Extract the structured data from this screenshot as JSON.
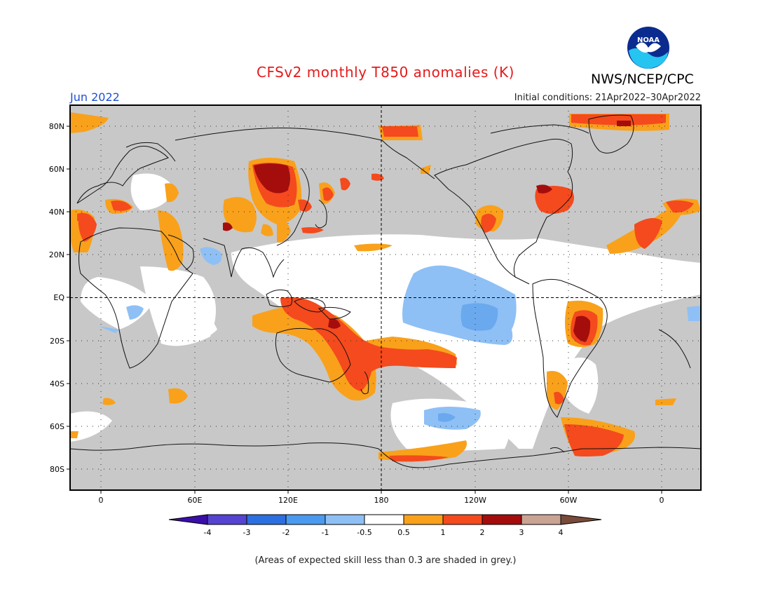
{
  "header": {
    "title": "CFSv2 monthly T850 anomalies (K)",
    "org": "NWS/NCEP/CPC",
    "month": "Jun 2022",
    "initial_conditions": "Initial conditions: 21Apr2022–30Apr2022"
  },
  "logo": {
    "text": "NOAA",
    "icon": "noaa-logo"
  },
  "footnote": "(Areas of expected skill less than 0.3 are shaded in grey.)",
  "map": {
    "lat_ticks": [
      "80N",
      "60N",
      "40N",
      "20N",
      "EQ",
      "20S",
      "40S",
      "60S",
      "80S"
    ],
    "lon_ticks": [
      "0",
      "60E",
      "120E",
      "180",
      "120W",
      "60W",
      "0"
    ]
  },
  "colorbar": {
    "levels": [
      "-4",
      "-3",
      "-2",
      "-1",
      "-0.5",
      "0.5",
      "1",
      "2",
      "3",
      "4"
    ],
    "colors": [
      "#3a0fa8",
      "#5543d2",
      "#2c6fe0",
      "#4a9aee",
      "#8ec0f5",
      "#ffffff",
      "#f9a11b",
      "#f44a1d",
      "#a50d0d",
      "#c9a393",
      "#7a4b3a"
    ]
  },
  "colors": {
    "grey_skill": "#c8c8c8",
    "warm1": "#f9a11b",
    "warm2": "#f44a1d",
    "warm3": "#a50d0d",
    "cool1": "#8ec0f5",
    "cool2": "#6aa9ee"
  }
}
